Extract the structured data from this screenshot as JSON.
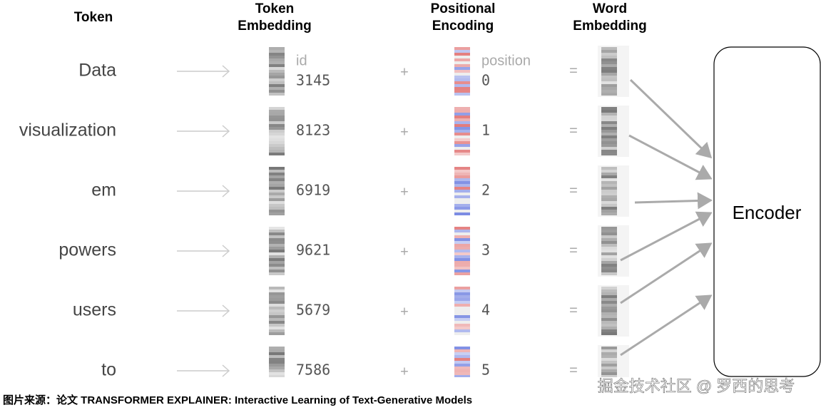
{
  "headers": {
    "token": "Token",
    "token_embedding": [
      "Token",
      "Embedding"
    ],
    "positional_encoding": [
      "Positional",
      "Encoding"
    ],
    "word_embedding": [
      "Word",
      "Embedding"
    ]
  },
  "labels": {
    "id": "id",
    "position": "position"
  },
  "operators": {
    "plus": "+",
    "equals": "="
  },
  "rows": [
    {
      "token": "Data",
      "id": 3145,
      "position": 0
    },
    {
      "token": "visualization",
      "id": 8123,
      "position": 1
    },
    {
      "token": "em",
      "id": 6919,
      "position": 2
    },
    {
      "token": "powers",
      "id": 9621,
      "position": 3
    },
    {
      "token": "users",
      "id": 5679,
      "position": 4
    },
    {
      "token": "to",
      "id": 7586,
      "position": 5
    }
  ],
  "encoder": "Encoder",
  "caption": "图片来源：论文 TRANSFORMER EXPLAINER: Interactive Learning of Text-Generative Models",
  "watermark": "掘金技术社区 @ 罗西的思考"
}
